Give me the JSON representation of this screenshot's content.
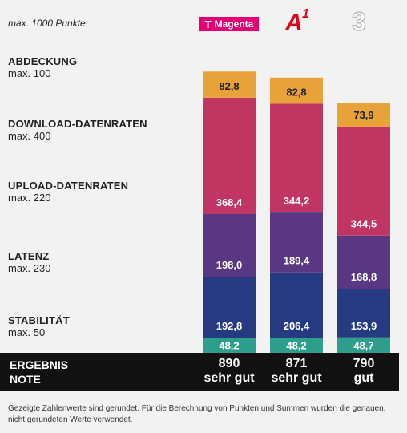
{
  "header": {
    "max_note": "max. 1000 Punkte"
  },
  "operators": [
    {
      "name": "Magenta",
      "logo": "telekom-magenta-logo",
      "color": "#e20074"
    },
    {
      "name": "A1",
      "logo": "a1-logo",
      "color": "#e2001a"
    },
    {
      "name": "3",
      "logo": "drei-logo",
      "color": "#b8b8b8"
    }
  ],
  "categories": [
    {
      "name": "ABDECKUNG",
      "max": "max. 100"
    },
    {
      "name": "DOWNLOAD-DATENRATEN",
      "max": "max. 400"
    },
    {
      "name": "UPLOAD-DATENRATEN",
      "max": "max. 220"
    },
    {
      "name": "LATENZ",
      "max": "max. 230"
    },
    {
      "name": "STABILITÄT",
      "max": "max. 50"
    }
  ],
  "chart_data": {
    "type": "bar",
    "stacked": true,
    "categories": [
      "Magenta",
      "A1",
      "3"
    ],
    "series": [
      {
        "name": "STABILITÄT",
        "values": [
          48.2,
          48.2,
          48.7
        ],
        "labels": [
          "48,2",
          "48,2",
          "48,7"
        ],
        "color": "#2e9e8c",
        "label_color": "#ffffff"
      },
      {
        "name": "LATENZ",
        "values": [
          192.8,
          206.4,
          153.9
        ],
        "labels": [
          "192,8",
          "206,4",
          "153,9"
        ],
        "color": "#263a82",
        "label_color": "#ffffff"
      },
      {
        "name": "UPLOAD-DATENRATEN",
        "values": [
          198.0,
          189.4,
          168.8
        ],
        "labels": [
          "198,0",
          "189,4",
          "168,8"
        ],
        "color": "#5a3782",
        "label_color": "#ffffff"
      },
      {
        "name": "DOWNLOAD-DATENRATEN",
        "values": [
          368.4,
          344.2,
          344.5
        ],
        "labels": [
          "368,4",
          "344,2",
          "344,5"
        ],
        "color": "#c13563",
        "label_color": "#ffffff"
      },
      {
        "name": "ABDECKUNG",
        "values": [
          82.8,
          82.8,
          73.9
        ],
        "labels": [
          "82,8",
          "82,8",
          "73,9"
        ],
        "color": "#e8a23a",
        "label_color": "#222222"
      }
    ],
    "ylim": [
      0,
      1000
    ],
    "grid": false,
    "legend": "left"
  },
  "results": {
    "ergebnis_label": "ERGEBNIS",
    "note_label": "NOTE",
    "scores": [
      "890",
      "871",
      "790"
    ],
    "notes": [
      "sehr gut",
      "sehr gut",
      "gut"
    ]
  },
  "footnote": "Gezeigte Zahlenwerte sind gerundet. Für die Berechnung von Punkten und Summen wurden die genauen, nicht gerundeten Werte verwendet."
}
